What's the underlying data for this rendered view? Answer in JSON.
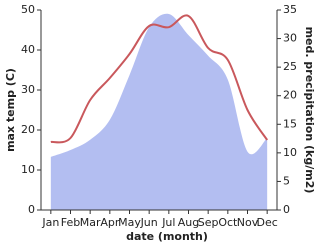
{
  "chart_data": {
    "type": "combo",
    "x_label": "date (month)",
    "y_label": "max temp (C)",
    "y2_label": "med. precipitation (kg/m2)",
    "categories": [
      "Jan",
      "Feb",
      "Mar",
      "Apr",
      "May",
      "Jun",
      "Jul",
      "Aug",
      "Sep",
      "Oct",
      "Nov",
      "Dec"
    ],
    "series": [
      {
        "type": "area",
        "axis": "y2",
        "color": "#b3bef1",
        "values": [
          9.3,
          10.5,
          12.3,
          15.8,
          23.6,
          32,
          34.3,
          30.6,
          27,
          22.8,
          10.2,
          12.6
        ]
      },
      {
        "type": "line",
        "axis": "y",
        "color": "#c9585c",
        "values": [
          17,
          18,
          27.5,
          33,
          39,
          46,
          45.7,
          48.5,
          40.5,
          37.5,
          25,
          17.5
        ]
      }
    ],
    "ylim": [
      0,
      50
    ],
    "yticks": [
      0,
      10,
      20,
      30,
      40,
      50
    ],
    "y2lim": [
      0,
      35
    ],
    "y2ticks": [
      0,
      5,
      10,
      15,
      20,
      25,
      30,
      35
    ]
  }
}
